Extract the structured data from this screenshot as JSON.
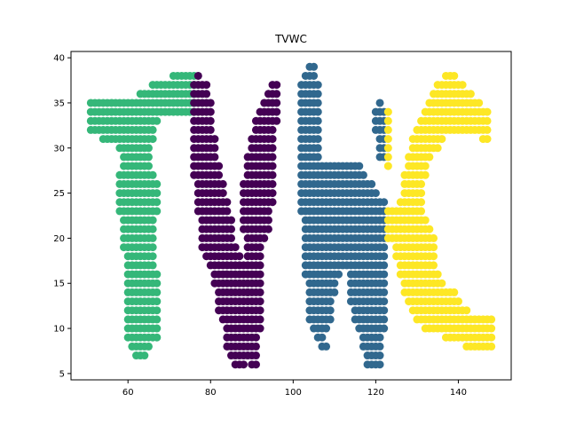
{
  "chart_data": {
    "type": "scatter",
    "title": "TVWC",
    "xlabel": "",
    "ylabel": "",
    "xlim": [
      46.2,
      152.8
    ],
    "ylim": [
      4.3,
      40.7
    ],
    "xticks": [
      60,
      80,
      100,
      120,
      140
    ],
    "yticks": [
      5,
      10,
      15,
      20,
      25,
      30,
      35,
      40
    ],
    "grid": false,
    "legend": "none",
    "colors": {
      "T": "#35b779",
      "V": "#440154",
      "W": "#31688e",
      "C": "#fde725"
    },
    "series": [
      {
        "letter": "T",
        "color": "#35b779",
        "rows": [
          [
            38,
            71,
            76
          ],
          [
            37,
            66,
            76
          ],
          [
            36,
            63,
            76
          ],
          [
            35,
            51,
            76
          ],
          [
            34,
            51,
            76
          ],
          [
            33,
            51,
            67
          ],
          [
            32,
            51,
            66
          ],
          [
            31,
            54,
            66
          ],
          [
            30,
            58,
            65
          ],
          [
            29,
            59,
            65
          ],
          [
            28,
            59,
            65
          ],
          [
            27,
            58,
            66
          ],
          [
            26,
            58,
            67
          ],
          [
            25,
            58,
            67
          ],
          [
            24,
            58,
            67
          ],
          [
            23,
            58,
            67
          ],
          [
            22,
            59,
            66
          ],
          [
            21,
            59,
            66
          ],
          [
            20,
            59,
            66
          ],
          [
            19,
            59,
            66
          ],
          [
            18,
            60,
            66
          ],
          [
            17,
            60,
            66
          ],
          [
            16,
            60,
            67
          ],
          [
            15,
            60,
            67
          ],
          [
            14,
            60,
            67
          ],
          [
            13,
            60,
            67
          ],
          [
            12,
            60,
            67
          ],
          [
            11,
            60,
            67
          ],
          [
            10,
            60,
            67
          ],
          [
            9,
            60,
            67
          ],
          [
            8,
            61,
            65
          ],
          [
            7,
            62,
            64
          ]
        ]
      },
      {
        "letter": "V",
        "color": "#440154",
        "rows": [
          [
            38,
            77,
            77
          ],
          [
            37,
            76,
            79
          ],
          [
            36,
            76,
            79
          ],
          [
            35,
            76,
            80
          ],
          [
            34,
            76,
            80
          ],
          [
            33,
            76,
            80
          ],
          [
            32,
            76,
            80
          ],
          [
            31,
            76,
            81
          ],
          [
            30,
            76,
            81
          ],
          [
            29,
            76,
            81
          ],
          [
            28,
            76,
            82
          ],
          [
            27,
            76,
            82
          ],
          [
            26,
            77,
            83
          ],
          [
            25,
            77,
            83
          ],
          [
            24,
            77,
            84
          ],
          [
            23,
            77,
            84
          ],
          [
            22,
            78,
            85
          ],
          [
            21,
            78,
            85
          ],
          [
            20,
            78,
            85
          ],
          [
            19,
            78,
            86
          ],
          [
            18,
            79,
            87
          ],
          [
            17,
            80,
            88
          ],
          [
            16,
            81,
            88
          ],
          [
            15,
            81,
            88
          ],
          [
            14,
            82,
            89
          ],
          [
            13,
            82,
            89
          ],
          [
            12,
            82,
            89
          ],
          [
            11,
            83,
            90
          ],
          [
            10,
            84,
            89
          ],
          [
            9,
            84,
            89
          ],
          [
            8,
            84,
            89
          ],
          [
            7,
            85,
            89
          ],
          [
            6,
            86,
            88
          ],
          [
            37,
            95,
            96
          ],
          [
            36,
            94,
            96
          ],
          [
            35,
            93,
            96
          ],
          [
            34,
            92,
            96
          ],
          [
            33,
            91,
            96
          ],
          [
            32,
            91,
            95
          ],
          [
            31,
            90,
            95
          ],
          [
            30,
            90,
            95
          ],
          [
            29,
            89,
            95
          ],
          [
            28,
            89,
            95
          ],
          [
            27,
            89,
            95
          ],
          [
            26,
            88,
            95
          ],
          [
            25,
            88,
            95
          ],
          [
            24,
            88,
            95
          ],
          [
            23,
            88,
            94
          ],
          [
            22,
            88,
            94
          ],
          [
            21,
            88,
            94
          ],
          [
            20,
            89,
            93
          ],
          [
            19,
            89,
            92
          ],
          [
            18,
            89,
            92
          ],
          [
            17,
            89,
            92
          ],
          [
            16,
            89,
            92
          ],
          [
            15,
            89,
            92
          ],
          [
            14,
            89,
            92
          ],
          [
            13,
            90,
            92
          ],
          [
            12,
            90,
            92
          ],
          [
            11,
            90,
            92
          ],
          [
            10,
            90,
            92
          ],
          [
            9,
            90,
            91
          ],
          [
            8,
            90,
            91
          ],
          [
            7,
            90,
            91
          ],
          [
            6,
            90,
            91
          ]
        ]
      },
      {
        "letter": "W",
        "color": "#31688e",
        "rows": [
          [
            39,
            104,
            105
          ],
          [
            38,
            103,
            105
          ],
          [
            37,
            102,
            106
          ],
          [
            36,
            102,
            106
          ],
          [
            35,
            102,
            106
          ],
          [
            34,
            102,
            106
          ],
          [
            33,
            102,
            106
          ],
          [
            32,
            102,
            106
          ],
          [
            31,
            102,
            106
          ],
          [
            30,
            102,
            106
          ],
          [
            29,
            102,
            106
          ],
          [
            28,
            102,
            116
          ],
          [
            27,
            102,
            117
          ],
          [
            26,
            102,
            119
          ],
          [
            25,
            102,
            120
          ],
          [
            24,
            102,
            122
          ],
          [
            23,
            102,
            122
          ],
          [
            22,
            103,
            122
          ],
          [
            21,
            103,
            122
          ],
          [
            20,
            103,
            122
          ],
          [
            19,
            103,
            122
          ],
          [
            18,
            103,
            122
          ],
          [
            17,
            103,
            122
          ],
          [
            16,
            103,
            111
          ],
          [
            15,
            104,
            110
          ],
          [
            14,
            104,
            110
          ],
          [
            13,
            104,
            109
          ],
          [
            12,
            104,
            109
          ],
          [
            11,
            104,
            109
          ],
          [
            10,
            105,
            108
          ],
          [
            9,
            106,
            107
          ],
          [
            8,
            107,
            108
          ],
          [
            16,
            114,
            122
          ],
          [
            15,
            114,
            122
          ],
          [
            14,
            114,
            122
          ],
          [
            13,
            114,
            122
          ],
          [
            12,
            115,
            122
          ],
          [
            11,
            115,
            122
          ],
          [
            10,
            116,
            122
          ],
          [
            9,
            117,
            121
          ],
          [
            8,
            117,
            121
          ],
          [
            7,
            118,
            121
          ],
          [
            6,
            118,
            121
          ],
          [
            35,
            121,
            121
          ],
          [
            34,
            120,
            122
          ],
          [
            33,
            120,
            122
          ],
          [
            32,
            120,
            122
          ],
          [
            31,
            121,
            122
          ],
          [
            30,
            121,
            122
          ],
          [
            29,
            121,
            122
          ]
        ]
      },
      {
        "letter": "C",
        "color": "#fde725",
        "rows": [
          [
            38,
            137,
            139
          ],
          [
            37,
            135,
            141
          ],
          [
            36,
            134,
            143
          ],
          [
            35,
            133,
            145
          ],
          [
            34,
            132,
            147
          ],
          [
            33,
            131,
            147
          ],
          [
            32,
            130,
            145
          ],
          [
            31,
            129,
            136
          ],
          [
            30,
            129,
            135
          ],
          [
            29,
            128,
            133
          ],
          [
            28,
            128,
            132
          ],
          [
            27,
            127,
            132
          ],
          [
            26,
            127,
            131
          ],
          [
            25,
            127,
            131
          ],
          [
            24,
            126,
            131
          ],
          [
            23,
            123,
            131
          ],
          [
            22,
            123,
            132
          ],
          [
            21,
            123,
            133
          ],
          [
            20,
            123,
            134
          ],
          [
            19,
            125,
            134
          ],
          [
            18,
            125,
            134
          ],
          [
            17,
            126,
            134
          ],
          [
            16,
            126,
            135
          ],
          [
            15,
            127,
            136
          ],
          [
            14,
            127,
            139
          ],
          [
            13,
            128,
            140
          ],
          [
            12,
            129,
            142
          ],
          [
            11,
            130,
            148
          ],
          [
            10,
            132,
            148
          ],
          [
            9,
            137,
            148
          ],
          [
            8,
            142,
            148
          ],
          [
            34,
            123,
            123
          ],
          [
            33,
            123,
            123
          ],
          [
            32,
            123,
            123
          ],
          [
            31,
            123,
            123
          ],
          [
            30,
            123,
            123
          ],
          [
            29,
            123,
            123
          ],
          [
            28,
            123,
            123
          ],
          [
            32,
            146,
            147
          ],
          [
            31,
            146,
            147
          ]
        ]
      }
    ]
  }
}
